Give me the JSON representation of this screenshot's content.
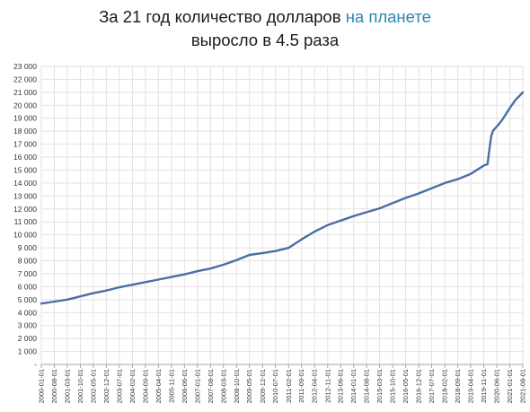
{
  "title": {
    "line1_prefix": "За 21 год количество долларов ",
    "line1_accent": "на планете",
    "line2": "выросло в 4.5 раза",
    "accent_color": "#2e86b8"
  },
  "chart_data": {
    "type": "line",
    "title": "За 21 год количество долларов на планете выросло в 4.5 раза",
    "xlabel": "",
    "ylabel": "",
    "ylim": [
      0,
      23000
    ],
    "grid": true,
    "legend": "none",
    "line_color": "#4a6fa5",
    "y_ticks": [
      "-",
      "1 000",
      "2 000",
      "3 000",
      "4 000",
      "5 000",
      "6 000",
      "7 000",
      "8 000",
      "9 000",
      "10 000",
      "11 000",
      "12 000",
      "13 000",
      "14 000",
      "15 000",
      "16 000",
      "17 000",
      "18 000",
      "19 000",
      "20 000",
      "21 000",
      "22 000",
      "23 000"
    ],
    "x_ticks": [
      "2000-01-01",
      "2000-08-01",
      "2001-03-01",
      "2001-10-01",
      "2002-05-01",
      "2002-12-01",
      "2003-07-01",
      "2004-02-01",
      "2004-09-01",
      "2005-04-01",
      "2005-11-01",
      "2006-06-01",
      "2007-01-01",
      "2007-08-01",
      "2008-03-01",
      "2008-10-01",
      "2009-05-01",
      "2009-12-01",
      "2010-07-01",
      "2011-02-01",
      "2011-09-01",
      "2012-04-01",
      "2012-11-01",
      "2013-06-01",
      "2014-01-01",
      "2014-08-01",
      "2015-03-01",
      "2015-10-01",
      "2016-05-01",
      "2016-12-01",
      "2017-07-01",
      "2018-02-01",
      "2018-09-01",
      "2019-04-01",
      "2019-11-01",
      "2020-06-01",
      "2021-01-01",
      "2021-08-01"
    ],
    "series": [
      {
        "x": [
          "2000-01-01",
          "2000-08-01",
          "2001-03-01",
          "2001-10-01",
          "2002-05-01",
          "2002-12-01",
          "2003-07-01",
          "2004-02-01",
          "2004-09-01",
          "2005-04-01",
          "2005-11-01",
          "2006-06-01",
          "2007-01-01",
          "2007-08-01",
          "2008-03-01",
          "2008-10-01",
          "2009-05-01",
          "2009-12-01",
          "2010-07-01",
          "2011-02-01",
          "2011-09-01",
          "2012-04-01",
          "2012-11-01",
          "2013-06-01",
          "2014-01-01",
          "2014-08-01",
          "2015-03-01",
          "2015-10-01",
          "2016-05-01",
          "2016-12-01",
          "2017-07-01",
          "2018-02-01",
          "2018-09-01",
          "2019-04-01",
          "2019-11-01",
          "2020-01-01",
          "2020-02-01",
          "2020-03-01",
          "2020-04-01",
          "2020-05-01",
          "2020-06-01",
          "2020-09-01",
          "2021-01-01",
          "2021-04-01",
          "2021-08-01"
        ],
        "values": [
          4700,
          4850,
          5000,
          5250,
          5500,
          5700,
          5950,
          6150,
          6350,
          6550,
          6750,
          6950,
          7200,
          7400,
          7700,
          8050,
          8450,
          8600,
          8750,
          9000,
          9650,
          10250,
          10750,
          11100,
          11450,
          11750,
          12050,
          12450,
          12850,
          13200,
          13600,
          14000,
          14300,
          14700,
          15350,
          15450,
          16600,
          17600,
          18050,
          18200,
          18350,
          18900,
          19800,
          20400,
          21000
        ]
      }
    ]
  }
}
